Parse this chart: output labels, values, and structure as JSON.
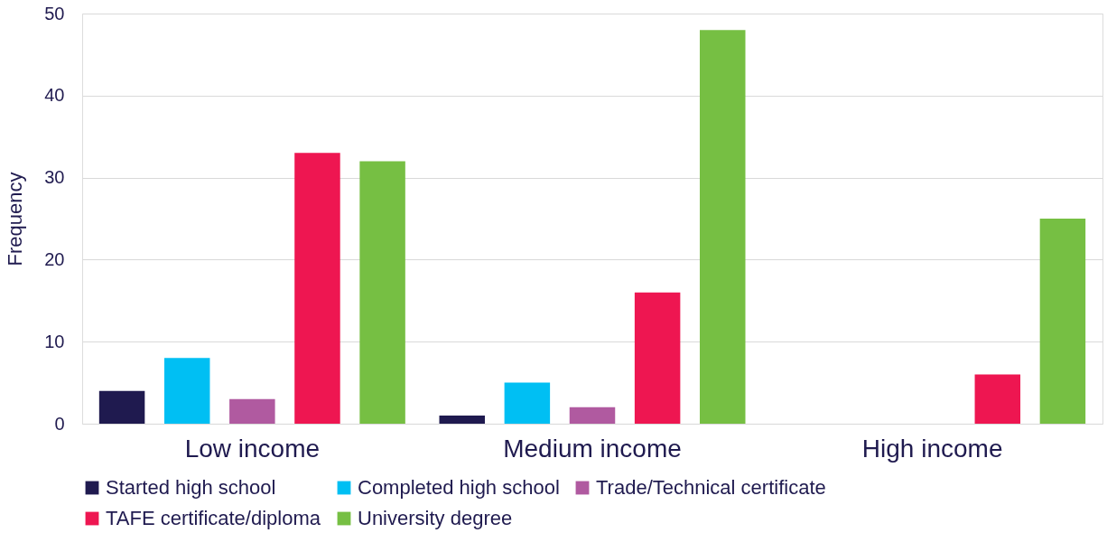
{
  "chart_data": {
    "type": "bar",
    "ylabel": "Frequency",
    "categories": [
      "Low income",
      "Medium income",
      "High income"
    ],
    "series": [
      {
        "name": "Started high school",
        "color": "#1f1a4f",
        "values": [
          4,
          1,
          0
        ]
      },
      {
        "name": "Completed high school",
        "color": "#00bff3",
        "values": [
          8,
          5,
          0
        ]
      },
      {
        "name": "Trade/Technical certificate",
        "color": "#b05aa0",
        "values": [
          3,
          2,
          0
        ]
      },
      {
        "name": "TAFE certificate/diploma",
        "color": "#ee1651",
        "values": [
          33,
          16,
          6
        ]
      },
      {
        "name": "University degree",
        "color": "#76bf43",
        "values": [
          32,
          48,
          25
        ]
      }
    ],
    "ylim": [
      0,
      50
    ],
    "yticks": [
      0,
      10,
      20,
      30,
      40,
      50
    ],
    "grid": "y",
    "legend": "bottom"
  }
}
